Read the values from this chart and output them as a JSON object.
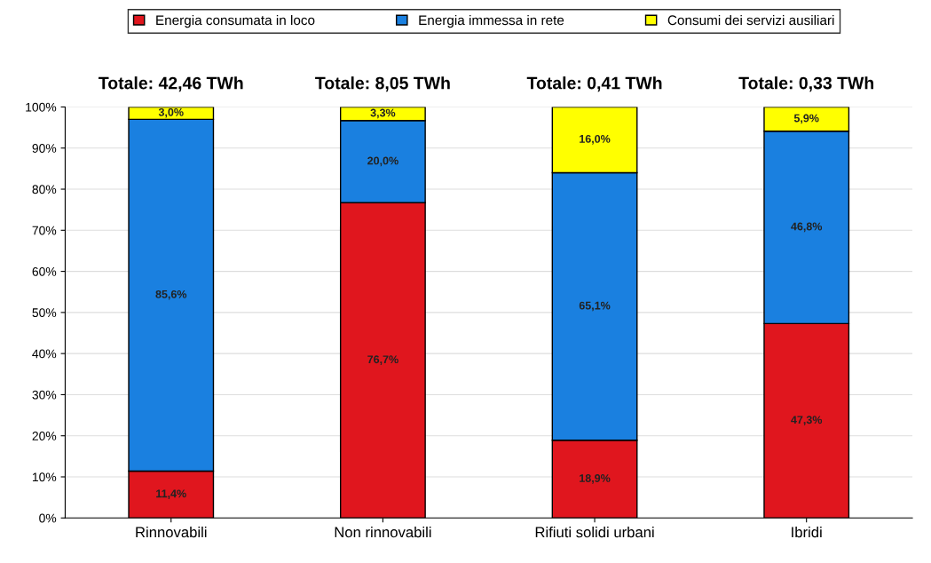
{
  "chart_data": {
    "type": "bar",
    "stacked": true,
    "categories": [
      "Rinnovabili",
      "Non rinnovabili",
      "Rifiuti solidi urbani",
      "Ibridi"
    ],
    "series": [
      {
        "name": "Energia consumata in loco",
        "color": "#e0161e",
        "values": [
          11.4,
          76.7,
          18.9,
          47.3
        ],
        "value_labels": [
          "11,4%",
          "76,7%",
          "18,9%",
          "47,3%"
        ]
      },
      {
        "name": "Energia immessa in rete",
        "color": "#1a80e0",
        "values": [
          85.6,
          20.0,
          65.1,
          46.8
        ],
        "value_labels": [
          "85,6%",
          "20,0%",
          "65,1%",
          "46,8%"
        ]
      },
      {
        "name": "Consumi dei servizi ausiliari",
        "color": "#ffff00",
        "values": [
          3.0,
          3.3,
          16.0,
          5.9
        ],
        "value_labels": [
          "3,0%",
          "3,3%",
          "16,0%",
          "5,9%"
        ]
      }
    ],
    "annotations": [
      "Totale: 42,46 TWh",
      "Totale: 8,05 TWh",
      "Totale: 0,41 TWh",
      "Totale: 0,33 TWh"
    ],
    "ylim": [
      0,
      100
    ],
    "yticks": [
      {
        "value": 0,
        "label": "0%"
      },
      {
        "value": 10,
        "label": "10%"
      },
      {
        "value": 20,
        "label": "20%"
      },
      {
        "value": 30,
        "label": "30%"
      },
      {
        "value": 40,
        "label": "40%"
      },
      {
        "value": 50,
        "label": "50%"
      },
      {
        "value": 60,
        "label": "60%"
      },
      {
        "value": 70,
        "label": "70%"
      },
      {
        "value": 80,
        "label": "80%"
      },
      {
        "value": 90,
        "label": "90%"
      },
      {
        "value": 100,
        "label": "100%"
      }
    ],
    "grid": "y",
    "legend": "top"
  }
}
